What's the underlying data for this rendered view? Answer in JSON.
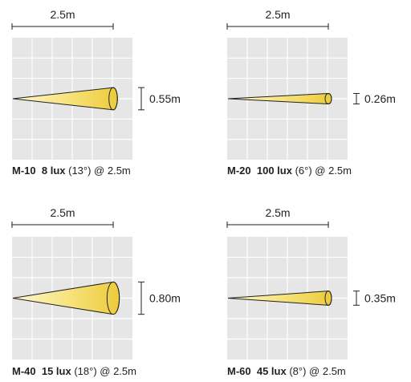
{
  "panels": [
    {
      "model": "M-10",
      "lux": "8 lux",
      "angle": "(13°) @ 2.5m",
      "distance": "2.5m",
      "diameter": "0.55m",
      "beam_angle_deg": 13,
      "beam_diameter_m": 0.55
    },
    {
      "model": "M-20",
      "lux": "100 lux",
      "angle": "(6°) @ 2.5m",
      "distance": "2.5m",
      "diameter": "0.26m",
      "beam_angle_deg": 6,
      "beam_diameter_m": 0.26
    },
    {
      "model": "M-40",
      "lux": "15 lux",
      "angle": "(18°) @ 2.5m",
      "distance": "2.5m",
      "diameter": "0.80m",
      "beam_angle_deg": 18,
      "beam_diameter_m": 0.8
    },
    {
      "model": "M-60",
      "lux": "45 lux",
      "angle": "(8°) @ 2.5m",
      "distance": "2.5m",
      "diameter": "0.35m",
      "beam_angle_deg": 8,
      "beam_diameter_m": 0.35
    }
  ],
  "colors": {
    "grid_bg": "#e6e6e6",
    "grid_line": "#ffffff",
    "beam_light": "#fdf6cf",
    "beam_mid": "#f7e27a",
    "beam_dark": "#eccb3b",
    "stroke": "#222222"
  }
}
